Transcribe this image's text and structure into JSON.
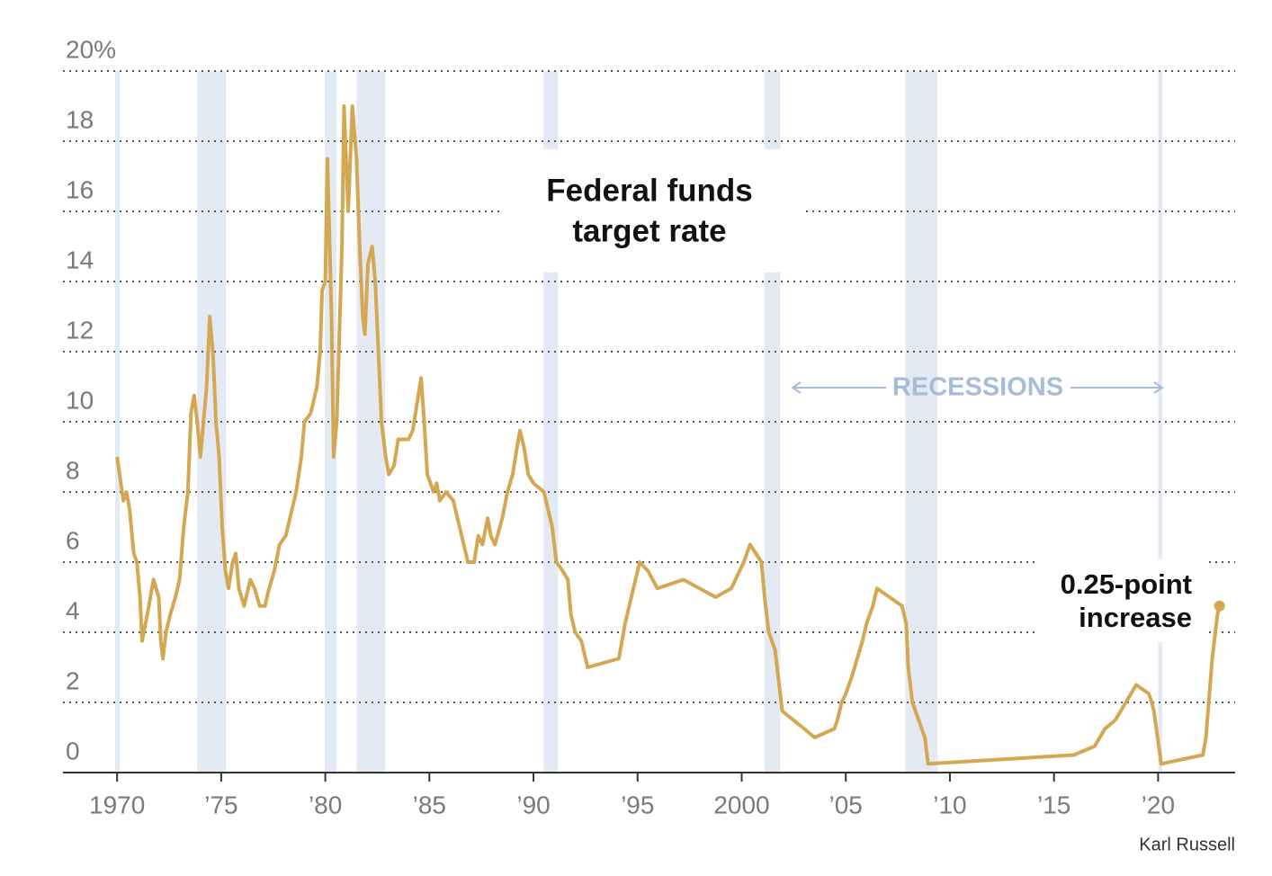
{
  "chart_data": {
    "type": "line",
    "title_lines": [
      "Federal funds",
      "target rate"
    ],
    "annotation_lines": [
      "0.25-point",
      "increase"
    ],
    "recessions_label": "RECESSIONS",
    "credit": "Karl Russell",
    "color": "#d4a853",
    "recession_color": "#e3eaf4",
    "recessions": [
      [
        1969.9,
        1970.13
      ],
      [
        1973.85,
        1975.23
      ],
      [
        1979.98,
        1980.54
      ],
      [
        1981.5,
        1982.88
      ],
      [
        1990.48,
        1991.18
      ],
      [
        2001.1,
        2001.85
      ],
      [
        2007.86,
        2009.41
      ],
      [
        2020.0,
        2020.2
      ]
    ],
    "x": [
      1970.0,
      1970.3,
      1970.45,
      1970.6,
      1970.8,
      1970.95,
      1971.1,
      1971.2,
      1971.45,
      1971.6,
      1971.75,
      1972.0,
      1972.1,
      1972.2,
      1972.35,
      1972.55,
      1972.8,
      1973.0,
      1973.2,
      1973.4,
      1973.55,
      1973.7,
      1973.85,
      1974.0,
      1974.15,
      1974.3,
      1974.45,
      1974.6,
      1974.75,
      1974.9,
      1975.05,
      1975.2,
      1975.35,
      1975.55,
      1975.7,
      1975.85,
      1976.1,
      1976.4,
      1976.6,
      1976.85,
      1977.1,
      1977.3,
      1977.55,
      1977.8,
      1978.1,
      1978.4,
      1978.6,
      1978.85,
      1979.0,
      1979.3,
      1979.6,
      1979.75,
      1979.85,
      1980.0,
      1980.1,
      1980.3,
      1980.4,
      1980.55,
      1980.8,
      1980.9,
      1981.1,
      1981.3,
      1981.5,
      1981.65,
      1981.8,
      1981.9,
      1982.05,
      1982.25,
      1982.4,
      1982.55,
      1982.7,
      1982.9,
      1983.05,
      1983.3,
      1983.5,
      1983.8,
      1984.0,
      1984.2,
      1984.4,
      1984.6,
      1984.75,
      1984.9,
      1985.2,
      1985.35,
      1985.5,
      1985.8,
      1986.15,
      1986.35,
      1986.55,
      1986.85,
      1987.15,
      1987.35,
      1987.55,
      1987.8,
      1987.95,
      1988.15,
      1988.5,
      1988.75,
      1989.0,
      1989.2,
      1989.35,
      1989.55,
      1989.75,
      1990.0,
      1990.5,
      1990.9,
      1991.1,
      1991.4,
      1991.65,
      1991.8,
      1992.0,
      1992.3,
      1992.6,
      1994.1,
      1994.25,
      1994.4,
      1994.6,
      1994.9,
      1995.1,
      1995.5,
      1995.95,
      1997.2,
      1998.75,
      1999.5,
      1999.7,
      1999.9,
      2000.1,
      2000.4,
      2000.95,
      2001.1,
      2001.3,
      2001.6,
      2001.8,
      2001.95,
      2003.0,
      2003.5,
      2004.45,
      2004.6,
      2004.8,
      2005.0,
      2005.3,
      2005.55,
      2005.8,
      2006.0,
      2006.3,
      2006.5,
      2007.7,
      2007.9,
      2008.0,
      2008.2,
      2008.8,
      2008.95,
      2015.95,
      2016.95,
      2017.2,
      2017.45,
      2017.95,
      2018.2,
      2018.45,
      2018.7,
      2018.95,
      2019.55,
      2019.7,
      2019.8,
      2020.15,
      2022.15,
      2022.3,
      2022.4,
      2022.5,
      2022.6,
      2022.75,
      2022.85,
      2022.95
    ],
    "values": [
      9.0,
      7.75,
      8.0,
      7.5,
      6.25,
      6.0,
      5.0,
      3.75,
      4.5,
      5.0,
      5.5,
      5.0,
      3.75,
      3.25,
      4.0,
      4.5,
      5.0,
      5.5,
      7.0,
      8.0,
      10.25,
      10.75,
      10.0,
      9.0,
      10.0,
      11.0,
      13.0,
      12.0,
      10.0,
      9.0,
      7.0,
      5.75,
      5.25,
      6.0,
      6.25,
      5.25,
      4.75,
      5.5,
      5.25,
      4.75,
      4.75,
      5.25,
      5.75,
      6.5,
      6.75,
      7.5,
      8.0,
      9.0,
      10.0,
      10.25,
      11.0,
      12.0,
      13.75,
      14.0,
      17.5,
      13.0,
      9.0,
      10.0,
      15.0,
      19.0,
      16.0,
      19.0,
      17.5,
      15.0,
      13.0,
      12.5,
      14.5,
      15.0,
      14.0,
      12.0,
      10.0,
      9.0,
      8.5,
      8.75,
      9.5,
      9.5,
      9.5,
      9.75,
      10.5,
      11.25,
      10.0,
      8.5,
      8.0,
      8.25,
      7.75,
      8.0,
      7.75,
      7.25,
      6.75,
      6.0,
      6.0,
      6.75,
      6.5,
      7.25,
      6.75,
      6.5,
      7.25,
      8.0,
      8.5,
      9.25,
      9.75,
      9.25,
      8.5,
      8.25,
      8.0,
      7.0,
      6.0,
      5.75,
      5.5,
      4.5,
      4.0,
      3.75,
      3.0,
      3.25,
      3.75,
      4.25,
      4.75,
      5.5,
      6.0,
      5.75,
      5.25,
      5.5,
      5.0,
      5.25,
      5.5,
      5.75,
      6.0,
      6.5,
      6.0,
      5.0,
      4.0,
      3.5,
      2.5,
      1.75,
      1.25,
      1.0,
      1.25,
      1.5,
      2.0,
      2.25,
      2.75,
      3.25,
      3.75,
      4.25,
      4.75,
      5.25,
      4.75,
      4.25,
      3.0,
      2.0,
      1.0,
      0.25,
      0.5,
      0.75,
      1.0,
      1.25,
      1.5,
      1.75,
      2.0,
      2.25,
      2.5,
      2.25,
      2.0,
      1.75,
      0.25,
      0.5,
      1.0,
      1.75,
      2.5,
      3.25,
      4.0,
      4.5,
      4.75
    ],
    "xlim": [
      1967.4,
      2023.7
    ],
    "ylim": [
      0,
      20
    ],
    "xticks": [
      1970,
      {
        "value": 1975,
        "label": "’75"
      },
      {
        "value": 1980,
        "label": "’80"
      },
      {
        "value": 1985,
        "label": "’85"
      },
      {
        "value": 1990,
        "label": "’90"
      },
      {
        "value": 1995,
        "label": "’95"
      },
      2000,
      {
        "value": 2005,
        "label": "’05"
      },
      {
        "value": 2010,
        "label": "’10"
      },
      {
        "value": 2015,
        "label": "’15"
      },
      {
        "value": 2020,
        "label": "’20"
      }
    ],
    "yticks": [
      0,
      2,
      4,
      6,
      8,
      10,
      12,
      14,
      16,
      18,
      {
        "value": 20,
        "label": "20%"
      }
    ],
    "grid": true
  }
}
